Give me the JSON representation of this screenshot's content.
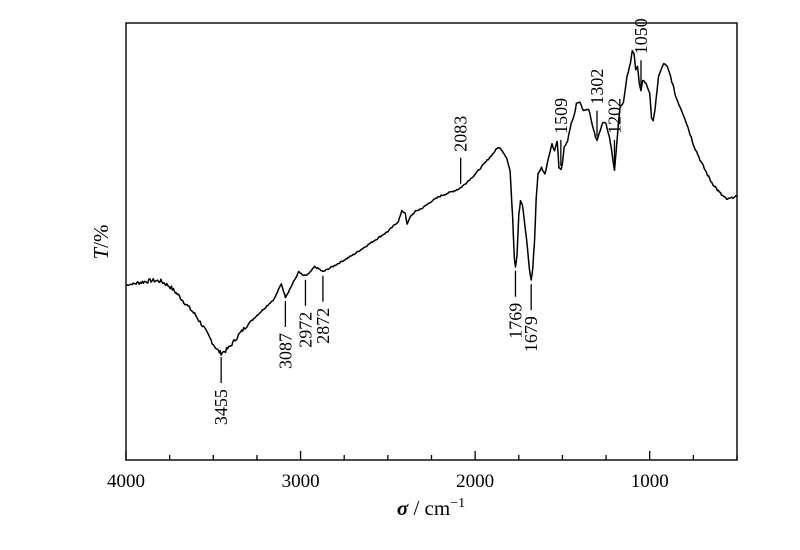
{
  "chart_data": {
    "type": "line",
    "x_reversed": true,
    "xlim": [
      500,
      4000
    ],
    "x_ticks": [
      4000,
      3000,
      2000,
      1000
    ],
    "x_tick_labels": [
      "4000",
      "3000",
      "2000",
      "1000"
    ],
    "x_minor_step": 250,
    "y_ticks": false,
    "grid": false,
    "xlabel": {
      "symbol": "σ",
      "rest": " / cm",
      "sup": "−1"
    },
    "ylabel": {
      "symbol": "T",
      "rest": "/%"
    },
    "series": [
      {
        "x": [
          4000,
          3900,
          3850,
          3800,
          3760,
          3740,
          3700,
          3650,
          3600,
          3550,
          3500,
          3470,
          3455,
          3430,
          3400,
          3350,
          3300,
          3250,
          3200,
          3150,
          3110,
          3090,
          3087,
          3070,
          3040,
          3010,
          2990,
          2972,
          2950,
          2920,
          2900,
          2872,
          2800,
          2700,
          2600,
          2500,
          2440,
          2420,
          2400,
          2390,
          2370,
          2340,
          2300,
          2250,
          2200,
          2150,
          2100,
          2083,
          2050,
          2000,
          1950,
          1900,
          1870,
          1850,
          1820,
          1800,
          1785,
          1775,
          1769,
          1760,
          1750,
          1740,
          1730,
          1720,
          1700,
          1690,
          1679,
          1670,
          1660,
          1650,
          1640,
          1620,
          1600,
          1580,
          1560,
          1545,
          1530,
          1520,
          1509,
          1500,
          1490,
          1470,
          1450,
          1430,
          1420,
          1400,
          1380,
          1350,
          1330,
          1310,
          1302,
          1290,
          1270,
          1250,
          1230,
          1215,
          1202,
          1190,
          1180,
          1170,
          1150,
          1130,
          1110,
          1100,
          1090,
          1080,
          1070,
          1060,
          1050,
          1040,
          1020,
          1000,
          990,
          980,
          970,
          950,
          920,
          900,
          880,
          850,
          800,
          750,
          700,
          650,
          600,
          560,
          530,
          500
        ],
        "y": [
          52,
          53,
          53.4,
          53.2,
          52,
          51.2,
          49,
          46,
          43,
          39,
          34.5,
          32.3,
          31.8,
          32.5,
          34,
          37.5,
          40.5,
          43,
          45.5,
          48,
          52.5,
          49,
          48.5,
          50,
          53,
          56,
          55,
          54.8,
          55.5,
          57.5,
          57,
          56,
          58,
          61,
          64.5,
          68,
          71,
          74,
          73.5,
          70,
          72.5,
          74,
          75,
          77,
          78.5,
          79.5,
          80.5,
          81,
          82.5,
          85,
          88,
          91,
          93,
          92.5,
          90,
          86,
          72,
          60,
          57.5,
          61,
          73,
          77,
          76,
          72,
          63,
          57,
          53.5,
          57,
          65,
          78,
          85,
          87,
          85,
          90,
          94,
          92,
          95,
          87,
          86.3,
          88,
          93,
          95,
          100,
          103,
          106,
          106.5,
          104,
          104.5,
          100,
          96,
          95,
          97,
          100.5,
          100,
          96,
          91,
          86.3,
          93,
          100,
          105,
          106.5,
          114,
          118,
          122,
          121,
          116,
          117,
          112,
          110,
          113,
          112,
          109,
          102,
          101,
          104,
          114,
          118,
          117,
          114,
          108,
          102,
          94,
          88,
          83,
          79.5,
          77.5,
          78,
          78.5
        ],
        "y_note": "transmittance shown without a printed scale"
      }
    ],
    "annotations": [
      {
        "label": "3455",
        "x": 3455,
        "side": "below"
      },
      {
        "label": "3087",
        "x": 3087,
        "side": "below"
      },
      {
        "label": "2972",
        "x": 2972,
        "side": "below"
      },
      {
        "label": "2872",
        "x": 2872,
        "side": "below"
      },
      {
        "label": "2083",
        "x": 2083,
        "side": "above"
      },
      {
        "label": "1769",
        "x": 1769,
        "side": "below"
      },
      {
        "label": "1679",
        "x": 1679,
        "side": "below"
      },
      {
        "label": "1509",
        "x": 1509,
        "side": "above"
      },
      {
        "label": "1302",
        "x": 1302,
        "side": "above"
      },
      {
        "label": "1202",
        "x": 1202,
        "side": "above"
      },
      {
        "label": "1050",
        "x": 1050,
        "side": "above"
      }
    ]
  }
}
